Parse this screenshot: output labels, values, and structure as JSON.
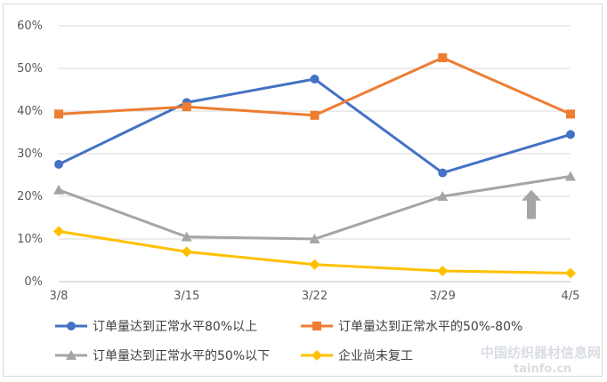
{
  "chart_data": {
    "type": "line",
    "title": "",
    "xlabel": "",
    "ylabel": "",
    "categories": [
      "3/8",
      "3/15",
      "3/22",
      "3/29",
      "4/5"
    ],
    "ylim": [
      0,
      60
    ],
    "yticks": [
      "0%",
      "10%",
      "20%",
      "30%",
      "40%",
      "50%",
      "60%"
    ],
    "grid": true,
    "legend_position": "bottom",
    "series": [
      {
        "name": "订单量达到正常水平80%以上",
        "values": [
          27.5,
          42,
          47.5,
          25.5,
          34.5
        ],
        "color": "#4472C4",
        "marker": "circle"
      },
      {
        "name": "订单量达到正常水平的50%-80%",
        "values": [
          39.3,
          41,
          39,
          52.5,
          39.3
        ],
        "color": "#ED7D31",
        "marker": "square"
      },
      {
        "name": "订单量达到正常水平的50%以下",
        "values": [
          21.5,
          10.5,
          10,
          20,
          24.7
        ],
        "color": "#A5A5A5",
        "marker": "triangle"
      },
      {
        "name": "企业尚未复工",
        "values": [
          11.8,
          7,
          4,
          2.5,
          2
        ],
        "color": "#FFC000",
        "marker": "diamond"
      }
    ],
    "annotations": [
      {
        "type": "arrow-up",
        "color": "#A5A5A5",
        "near_category": "4/5"
      }
    ]
  },
  "watermark": {
    "line1": "中国纺织器材信息网",
    "line2": "tainfo.cn"
  }
}
